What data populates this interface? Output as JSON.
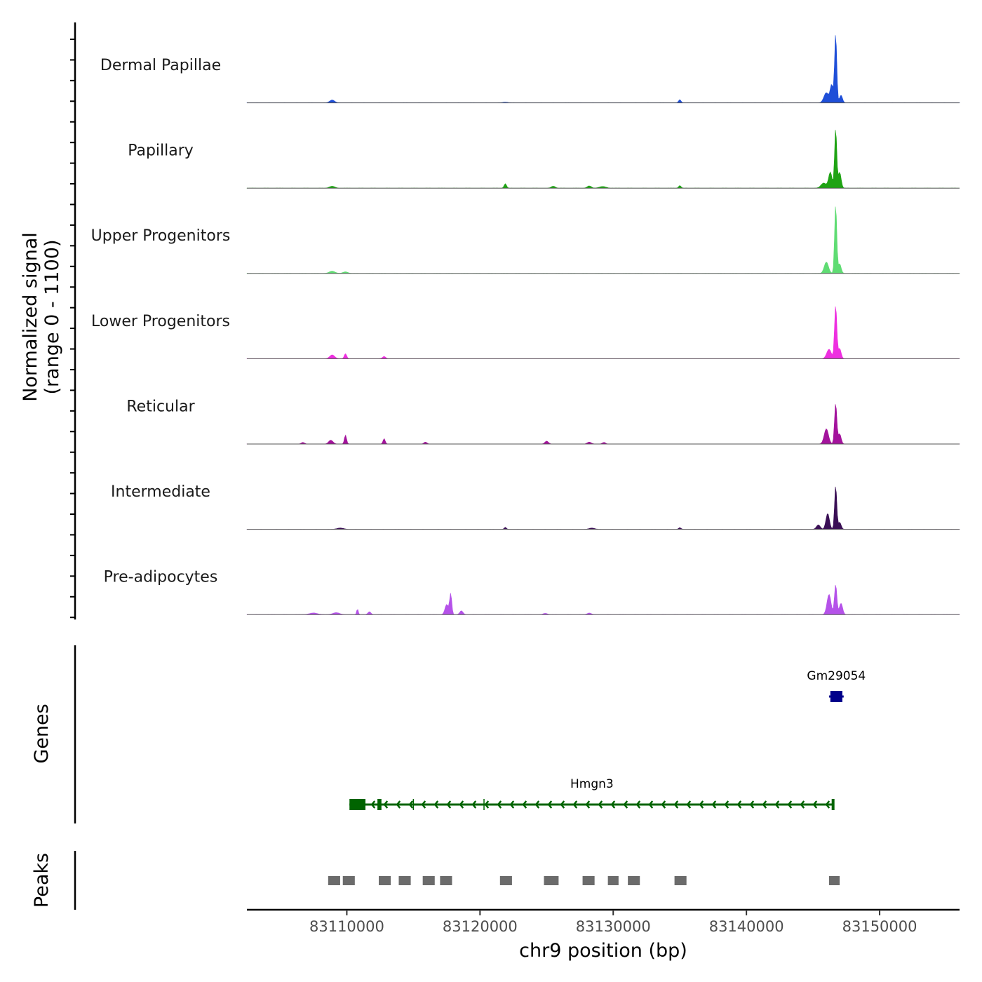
{
  "chart_data": {
    "type": "area",
    "title": "",
    "chromosome": "chr9",
    "xlabel": "chr9 position (bp)",
    "xlim": [
      83102500,
      83156000
    ],
    "x_ticks": [
      83110000,
      83120000,
      83130000,
      83140000,
      83150000
    ],
    "x_tick_labels": [
      "83110000",
      "83120000",
      "83130000",
      "83140000",
      "83150000"
    ],
    "coverage": {
      "ylabel_line1": "Normalized signal",
      "ylabel_line2": "(range 0 - 1100)",
      "ylim": [
        0,
        1100
      ],
      "series": [
        {
          "name": "Dermal Papillae",
          "color": "#1f4fd8",
          "peaks": [
            [
              83108900,
              45,
              180
            ],
            [
              83121900,
              10,
              200
            ],
            [
              83135000,
              50,
              90
            ],
            [
              83146000,
              160,
              180
            ],
            [
              83146400,
              280,
              110
            ],
            [
              83146700,
              1100,
              80
            ],
            [
              83147100,
              120,
              110
            ]
          ]
        },
        {
          "name": "Papillary",
          "color": "#1fa314",
          "peaks": [
            [
              83108900,
              30,
              200
            ],
            [
              83121900,
              70,
              90
            ],
            [
              83125500,
              30,
              150
            ],
            [
              83128200,
              35,
              150
            ],
            [
              83129200,
              25,
              250
            ],
            [
              83135000,
              40,
              90
            ],
            [
              83145800,
              80,
              200
            ],
            [
              83146300,
              250,
              130
            ],
            [
              83146700,
              950,
              80
            ],
            [
              83147000,
              250,
              110
            ]
          ]
        },
        {
          "name": "Upper Progenitors",
          "color": "#5fdc73",
          "peaks": [
            [
              83108900,
              35,
              220
            ],
            [
              83109900,
              25,
              180
            ],
            [
              83146000,
              180,
              160
            ],
            [
              83146700,
              1100,
              80
            ],
            [
              83147000,
              150,
              110
            ]
          ]
        },
        {
          "name": "Lower Progenitors",
          "color": "#ee2fe0",
          "peaks": [
            [
              83108900,
              60,
              180
            ],
            [
              83109900,
              80,
              90
            ],
            [
              83112800,
              35,
              120
            ],
            [
              83146200,
              150,
              170
            ],
            [
              83146700,
              850,
              85
            ],
            [
              83147000,
              160,
              110
            ]
          ]
        },
        {
          "name": "Reticular",
          "color": "#a3139c",
          "peaks": [
            [
              83106700,
              25,
              120
            ],
            [
              83108800,
              60,
              160
            ],
            [
              83109900,
              140,
              80
            ],
            [
              83112800,
              85,
              80
            ],
            [
              83115900,
              30,
              110
            ],
            [
              83125000,
              45,
              130
            ],
            [
              83128200,
              30,
              150
            ],
            [
              83129300,
              25,
              120
            ],
            [
              83146000,
              240,
              160
            ],
            [
              83146700,
              650,
              85
            ],
            [
              83147000,
              160,
              110
            ]
          ]
        },
        {
          "name": "Intermediate",
          "color": "#3a0f55",
          "peaks": [
            [
              83109500,
              20,
              250
            ],
            [
              83121900,
              30,
              80
            ],
            [
              83128400,
              20,
              200
            ],
            [
              83135000,
              25,
              90
            ],
            [
              83145400,
              70,
              140
            ],
            [
              83146100,
              250,
              130
            ],
            [
              83146700,
              700,
              80
            ],
            [
              83147000,
              110,
              110
            ]
          ]
        },
        {
          "name": "Pre-adipocytes",
          "color": "#b552e9",
          "peaks": [
            [
              83107500,
              25,
              300
            ],
            [
              83109200,
              30,
              250
            ],
            [
              83110800,
              90,
              60
            ],
            [
              83111700,
              45,
              110
            ],
            [
              83117500,
              160,
              130
            ],
            [
              83117800,
              330,
              80
            ],
            [
              83118600,
              60,
              120
            ],
            [
              83124900,
              20,
              150
            ],
            [
              83128200,
              25,
              150
            ],
            [
              83146200,
              320,
              150
            ],
            [
              83146700,
              480,
              90
            ],
            [
              83147100,
              180,
              120
            ]
          ]
        }
      ]
    },
    "genes": {
      "ylabel": "Genes",
      "items": [
        {
          "name": "Gm29054",
          "color": "#00008b",
          "start": 83146200,
          "end": 83147300,
          "strand": "-",
          "exons": [
            [
              83146300,
              83147200
            ]
          ]
        },
        {
          "name": "Hmgn3",
          "color": "#006400",
          "start": 83110200,
          "end": 83146600,
          "strand": "-",
          "exons": [
            [
              83110200,
              83111400
            ],
            [
              83112300,
              83112600
            ],
            [
              83146400,
              83146600
            ]
          ],
          "minor_exons": [
            83115000,
            83120300
          ]
        }
      ]
    },
    "peaks_track": {
      "ylabel": "Peaks",
      "color": "#6b6b6b",
      "regions": [
        [
          83108600,
          83109500
        ],
        [
          83109700,
          83110600
        ],
        [
          83112400,
          83113300
        ],
        [
          83113900,
          83114800
        ],
        [
          83115700,
          83116600
        ],
        [
          83117000,
          83117900
        ],
        [
          83121500,
          83122400
        ],
        [
          83124800,
          83125900
        ],
        [
          83127700,
          83128600
        ],
        [
          83129600,
          83130400
        ],
        [
          83131100,
          83132000
        ],
        [
          83134600,
          83135500
        ],
        [
          83146200,
          83147000
        ]
      ]
    }
  }
}
